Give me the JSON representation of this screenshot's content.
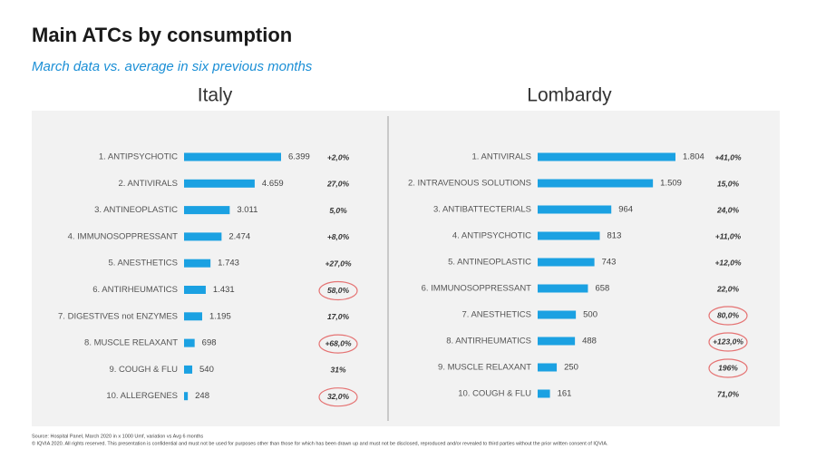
{
  "header": {
    "title": "Main ATCs by consumption",
    "subtitle": "March data vs. average in six previous months"
  },
  "chart_data": [
    {
      "type": "bar",
      "title": "Italy",
      "color": "#1ba1e2",
      "categories": [
        "1. ANTIPSYCHOTIC",
        "2. ANTIVIRALS",
        "3. ANTINEOPLASTIC",
        "4. IMMUNOSOPPRESSANT",
        "5. ANESTHETICS",
        "6. ANTIRHEUMATICS",
        "7. DIGESTIVES not ENZYMES",
        "8. MUSCLE RELAXANT",
        "9. COUGH & FLU",
        "10. ALLERGENES"
      ],
      "values": [
        6399,
        4659,
        3011,
        2474,
        1743,
        1431,
        1195,
        698,
        540,
        248
      ],
      "value_labels": [
        "6.399",
        "4.659",
        "3.011",
        "2.474",
        "1.743",
        "1.431",
        "1.195",
        "698",
        "540",
        "248"
      ],
      "variation_labels": [
        "+2,0%",
        "27,0%",
        "5,0%",
        "+8,0%",
        "+27,0%",
        "58,0%",
        "17,0%",
        "+68,0%",
        "31%",
        "32,0%"
      ],
      "circled": [
        5,
        7,
        9
      ]
    },
    {
      "type": "bar",
      "title": "Lombardy",
      "color": "#1ba1e2",
      "categories": [
        "1. ANTIVIRALS",
        "2. INTRAVENOUS SOLUTIONS",
        "3. ANTIBATTECTERIALS",
        "4. ANTIPSYCHOTIC",
        "5. ANTINEOPLASTIC",
        "6. IMMUNOSOPPRESSANT",
        "7. ANESTHETICS",
        "8. ANTIRHEUMATICS",
        "9. MUSCLE RELAXANT",
        "10. COUGH & FLU"
      ],
      "values": [
        1804,
        1509,
        964,
        813,
        743,
        658,
        500,
        488,
        250,
        161
      ],
      "value_labels": [
        "1.804",
        "1.509",
        "964",
        "813",
        "743",
        "658",
        "500",
        "488",
        "250",
        "161"
      ],
      "variation_labels": [
        "+41,0%",
        "15,0%",
        "24,0%",
        "+11,0%",
        "+12,0%",
        "22,0%",
        "80,0%",
        "+123,0%",
        "196%",
        "71,0%"
      ],
      "circled": [
        6,
        7,
        8
      ]
    }
  ],
  "footer": {
    "source": "Source: Hospital Panel, March 2020 in x 1000 Umf, variation vs Avg 6 months",
    "rights": "© IQVIA 2020. All rights reserved. This presentation is confidential and must not be used for purposes other than those for which has been drawn up and must not be disclosed, reproduced and/or revealed to third parties without the prior written consent of IQVIA."
  }
}
